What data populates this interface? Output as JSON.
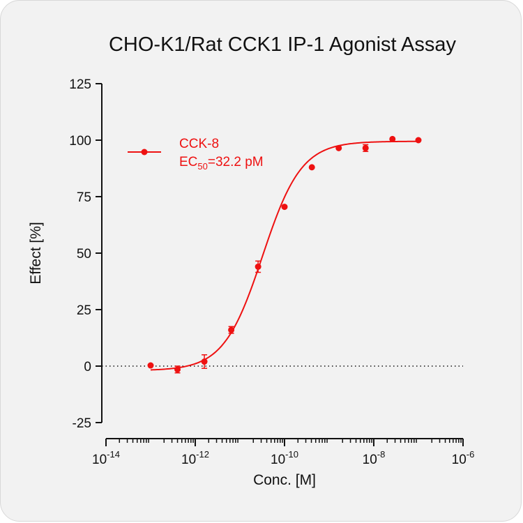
{
  "chart_data": {
    "type": "scatter",
    "title": "CHO-K1/Rat CCK1 IP-1 Agonist Assay",
    "xlabel": "Conc. [M]",
    "ylabel": "Effect  [%]",
    "x_scale": "log",
    "xlim": [
      1e-14,
      1e-06
    ],
    "ylim": [
      -25,
      125
    ],
    "y_ticks": [
      -25,
      0,
      25,
      50,
      75,
      100,
      125
    ],
    "x_ticks": [
      {
        "value": 1e-14,
        "base": "10",
        "exp": "-14"
      },
      {
        "value": 1e-12,
        "base": "10",
        "exp": "-12"
      },
      {
        "value": 1e-10,
        "base": "10",
        "exp": "-10"
      },
      {
        "value": 1e-08,
        "base": "10",
        "exp": "-8"
      },
      {
        "value": 1e-06,
        "base": "10",
        "exp": "-6"
      }
    ],
    "reference_line": {
      "y": 0,
      "style": "dotted"
    },
    "series": [
      {
        "name": "CCK-8",
        "color": "#ee1111",
        "ec50_label": "EC",
        "ec50_sub": "50",
        "ec50_value": "=32.2 pM",
        "fit": {
          "bottom": -2,
          "top": 99.5,
          "ec50": 3.22e-11,
          "hill": 1.0
        },
        "points": [
          {
            "x": 1e-13,
            "y": 0.3,
            "err": 0
          },
          {
            "x": 4e-13,
            "y": -1.5,
            "err": 1.5
          },
          {
            "x": 1.6e-12,
            "y": 2.0,
            "err": 3.0
          },
          {
            "x": 6.4e-12,
            "y": 16.0,
            "err": 1.5
          },
          {
            "x": 2.56e-11,
            "y": 44.0,
            "err": 2.5
          },
          {
            "x": 1e-10,
            "y": 70.5,
            "err": 0
          },
          {
            "x": 4.1e-10,
            "y": 88.0,
            "err": 0
          },
          {
            "x": 1.64e-09,
            "y": 96.5,
            "err": 0
          },
          {
            "x": 6.55e-09,
            "y": 96.5,
            "err": 1.5
          },
          {
            "x": 2.62e-08,
            "y": 100.5,
            "err": 0
          },
          {
            "x": 1e-07,
            "y": 100.0,
            "err": 0
          }
        ]
      }
    ]
  }
}
